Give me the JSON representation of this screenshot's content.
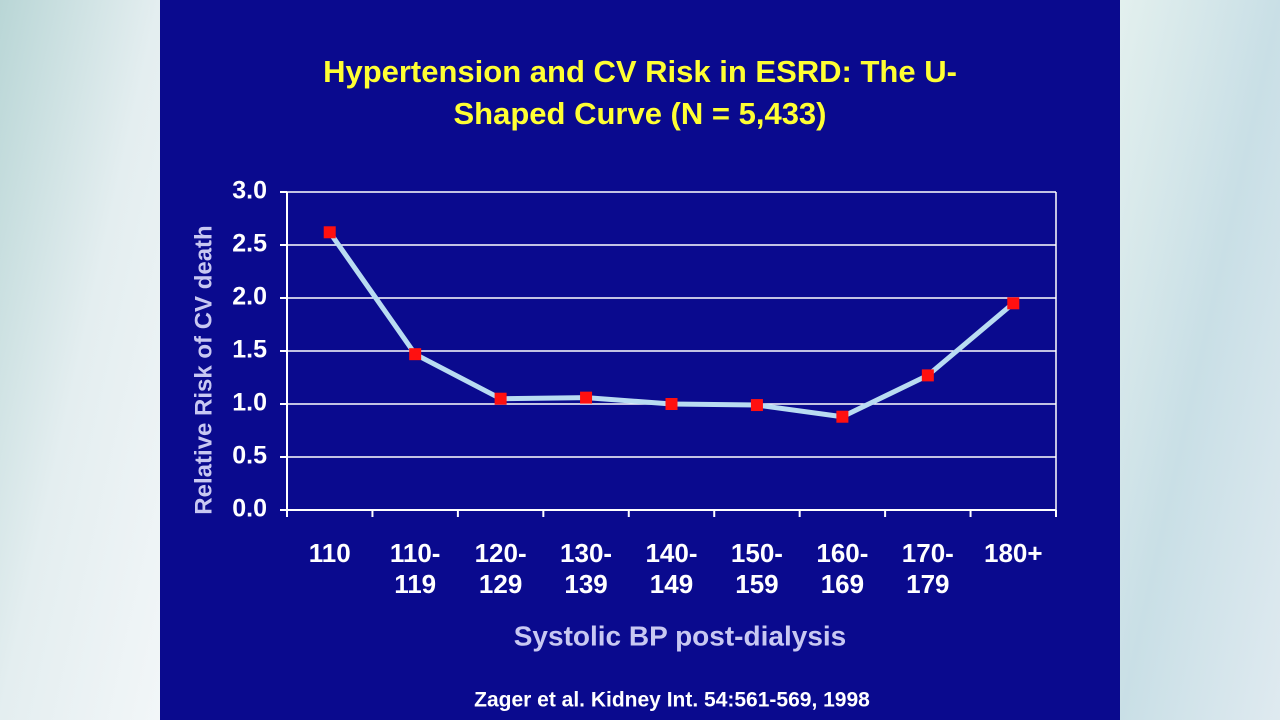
{
  "chart_data": {
    "type": "line",
    "title": [
      "Hypertension and CV Risk in ESRD: The U-",
      "Shaped Curve (N = 5,433)"
    ],
    "x_label": "Systolic BP post-dialysis",
    "y_label": "Relative Risk of CV death",
    "source": "Zager et al.  Kidney Int. 54:561-569, 1998",
    "categories": [
      "110",
      "110-\n119",
      "120-\n129",
      "130-\n139",
      "140-\n149",
      "150-\n159",
      "160-\n169",
      "170-\n179",
      "180+"
    ],
    "series": [
      {
        "color": "#b9dcf2",
        "marker_color": "#ff1010",
        "values": [
          2.62,
          1.47,
          1.05,
          1.06,
          1.0,
          0.99,
          0.88,
          1.27,
          1.95
        ]
      }
    ],
    "ylim": [
      0,
      3
    ],
    "yticks": [
      {
        "value": 0,
        "label": "0.0"
      },
      {
        "value": 0.5,
        "label": "0.5"
      },
      {
        "value": 1,
        "label": "1.0"
      },
      {
        "value": 1.5,
        "label": "1.5"
      },
      {
        "value": 2,
        "label": "2.0"
      },
      {
        "value": 2.5,
        "label": "2.5"
      },
      {
        "value": 3,
        "label": "3.0"
      }
    ],
    "grid": true
  }
}
